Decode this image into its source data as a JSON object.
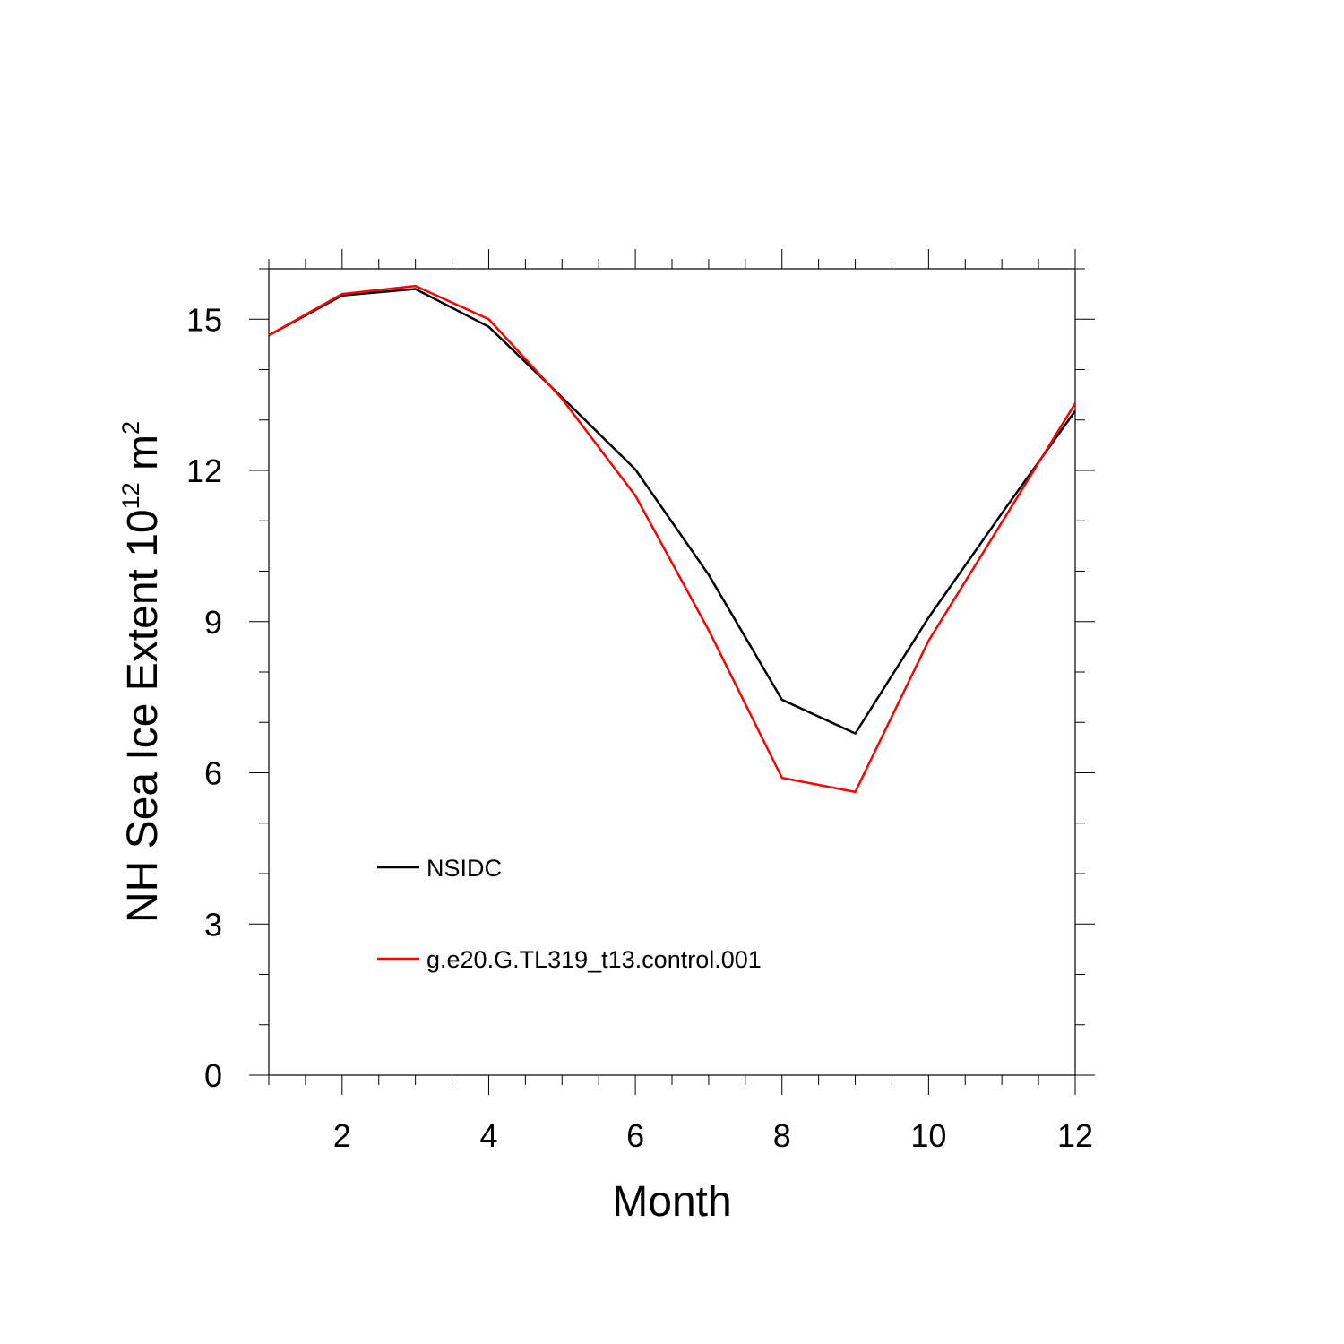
{
  "chart_data": {
    "type": "line",
    "xlabel": "Month",
    "ylabel": {
      "prefix": "NH Sea Ice Extent 10",
      "exp1": "12",
      "mid": " m",
      "exp2": "2"
    },
    "xlim": [
      1,
      12
    ],
    "ylim": [
      0,
      16
    ],
    "x_ticks": [
      2,
      4,
      6,
      8,
      10,
      12
    ],
    "y_ticks": [
      0,
      3,
      6,
      9,
      12,
      15
    ],
    "x_minor_step": 0.5,
    "y_minor_step": 1,
    "grid": false,
    "legend_position": "lower-left",
    "x": [
      1,
      2,
      3,
      4,
      5,
      6,
      7,
      8,
      9,
      10,
      11,
      12
    ],
    "series": [
      {
        "name": "NSIDC",
        "color": "#000000",
        "values": [
          14.68,
          15.47,
          15.6,
          14.85,
          13.45,
          12.02,
          9.93,
          7.45,
          6.78,
          9.08,
          11.15,
          13.18
        ]
      },
      {
        "name": "g.e20.G.TL319_t13.control.001",
        "color": "#ff0000",
        "values": [
          14.68,
          15.5,
          15.66,
          15.0,
          13.42,
          11.5,
          8.83,
          5.9,
          5.62,
          8.62,
          10.97,
          13.33
        ]
      }
    ]
  }
}
